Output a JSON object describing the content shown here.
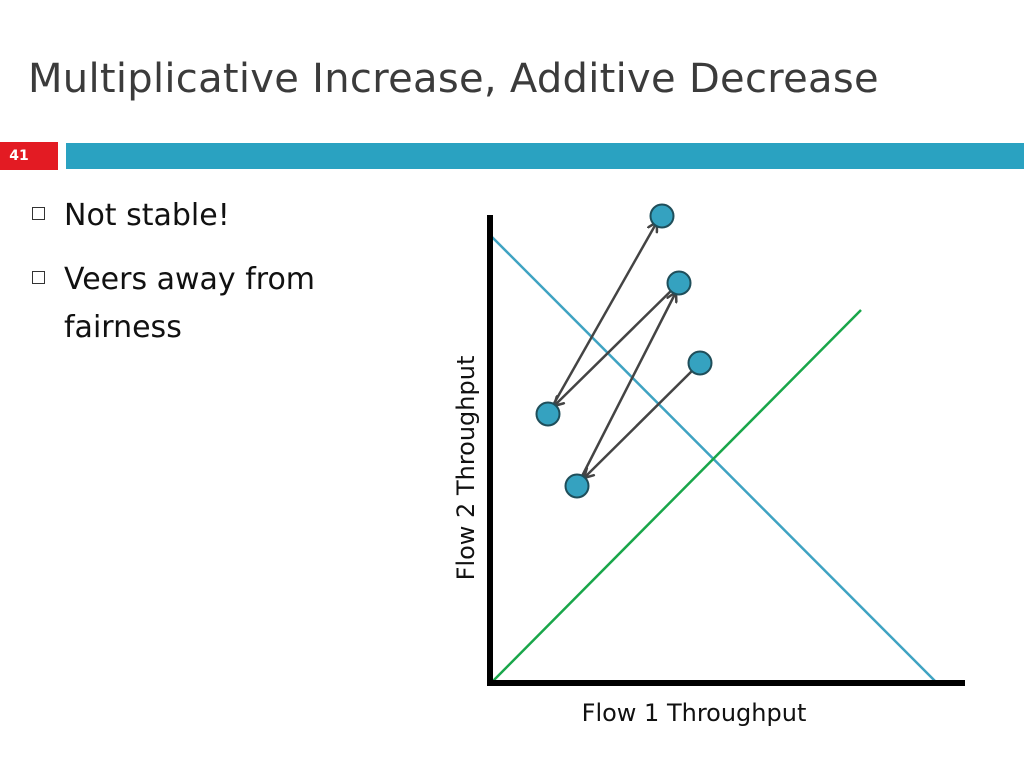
{
  "slide": {
    "title": "Multiplicative Increase, Additive Decrease",
    "number": "41",
    "accent_colors": {
      "number_badge": "#e31b23",
      "title_bar": "#2aa2c1"
    }
  },
  "bullets": [
    {
      "text": "Not stable!",
      "icon": "hollow-square-bullet-icon"
    },
    {
      "text": "Veers away from fairness",
      "icon": "hollow-square-bullet-icon"
    }
  ],
  "diagram": {
    "x_axis_label": "Flow 1 Throughput",
    "y_axis_label": "Flow 2 Throughput",
    "colors": {
      "axes": "#000000",
      "efficiency_line": "#3fa3c2",
      "fairness_line": "#19a64a",
      "points": "#35a2c0",
      "arrows": "#444444"
    }
  }
}
